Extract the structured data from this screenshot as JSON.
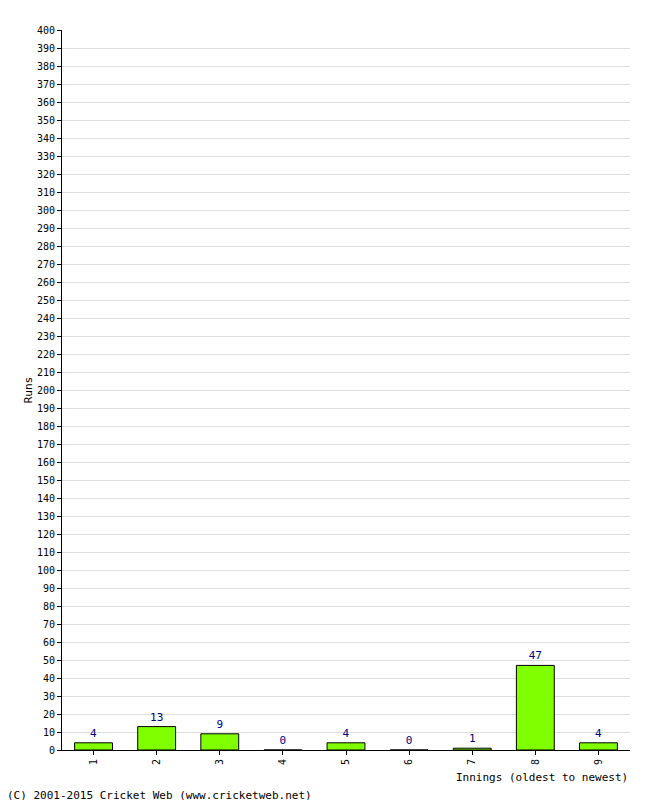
{
  "chart_data": {
    "type": "bar",
    "categories": [
      "1",
      "2",
      "3",
      "4",
      "5",
      "6",
      "7",
      "8",
      "9"
    ],
    "values": [
      4,
      13,
      9,
      0,
      4,
      0,
      1,
      47,
      4
    ],
    "color": "#80ff00",
    "x_label": "Innings (oldest to newest)",
    "y_label": "Runs",
    "annotations": [
      "(C) 2001-2015 Cricket Web (www.cricketweb.net)"
    ],
    "ylim": [
      0,
      400
    ],
    "yticks": [
      0,
      10,
      20,
      30,
      40,
      50,
      60,
      70,
      80,
      90,
      100,
      110,
      120,
      130,
      140,
      150,
      160,
      170,
      180,
      190,
      200,
      210,
      220,
      230,
      240,
      250,
      260,
      270,
      280,
      290,
      300,
      310,
      320,
      330,
      340,
      350,
      360,
      370,
      380,
      390,
      400
    ],
    "grid": true,
    "data_labels": true
  }
}
